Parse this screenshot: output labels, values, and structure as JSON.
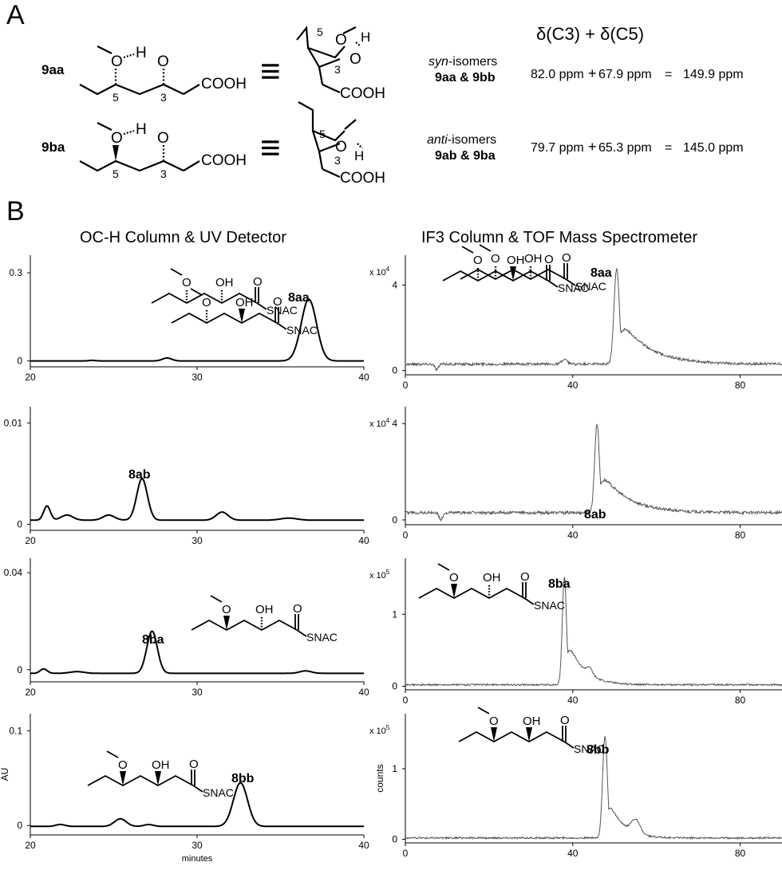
{
  "panel_a": {
    "letter": "A",
    "header": "δ(C3) + δ(C5)",
    "rows": [
      {
        "compound": "9aa",
        "atom_o": "O",
        "atom_h": "H",
        "num_5": "5",
        "num_3": "3",
        "acid": "COOH",
        "equiv": "≡",
        "isomer_type": "syn",
        "isomer_suffix": "-isomers",
        "isomer_pair": "9aa & 9bb",
        "c3_shift": "82.0 ppm",
        "c5_shift": "67.9 ppm",
        "plus": "+",
        "equals": "=",
        "sum": "149.9 ppm"
      },
      {
        "compound": "9ba",
        "atom_o": "O",
        "atom_h": "H",
        "num_5": "5",
        "num_3": "3",
        "acid": "COOH",
        "equiv": "≡",
        "isomer_type": "anti",
        "isomer_suffix": "-isomers",
        "isomer_pair": "9ab & 9ba",
        "c3_shift": "79.7 ppm",
        "c5_shift": "65.3 ppm",
        "plus": "+",
        "equals": "=",
        "sum": "145.0 ppm"
      }
    ]
  },
  "panel_b": {
    "letter": "B",
    "left_title": "OC-H Column & UV Detector",
    "right_title": "IF3 Column & TOF Mass Spectrometer",
    "struct_atoms": {
      "o": "O",
      "oh": "OH",
      "snac": "SNAC"
    }
  },
  "chart_data": [
    {
      "id": "uv-8aa",
      "type": "line",
      "detector": "UV",
      "compound": "8aa",
      "stereo": [
        "hash",
        "hash"
      ],
      "xlim": [
        20,
        40
      ],
      "xticks": [
        20,
        30,
        40
      ],
      "ylim": [
        -0.02,
        0.36
      ],
      "yticks": [
        0,
        0.3
      ],
      "ytick_labels": [
        "0",
        "0.3"
      ],
      "baseline": 0,
      "bumps": [
        [
          23.7,
          0.002,
          0.3
        ],
        [
          28.2,
          0.01,
          0.4
        ]
      ],
      "peaks": [
        {
          "x": 36.7,
          "y": 0.21,
          "w": 0.65
        }
      ],
      "noise": 0,
      "ylabel": "",
      "xlabel": "",
      "yexp": ""
    },
    {
      "id": "ms-8aa",
      "type": "line",
      "detector": "TOF MS",
      "compound": "8aa",
      "stereo": [
        "hash",
        "hash"
      ],
      "xlim": [
        0,
        90
      ],
      "xticks": [
        0,
        40,
        80
      ],
      "ylim": [
        -0.2,
        5.4
      ],
      "yticks": [
        0,
        4
      ],
      "ytick_labels": [
        "0",
        "4"
      ],
      "baseline": 0.3,
      "bumps": [
        [
          7.5,
          -0.25,
          0.6
        ],
        [
          38,
          0.2,
          1.0
        ]
      ],
      "peaks": [
        {
          "x": 50.5,
          "y": 4.5,
          "w": 0.9,
          "tail": 6.5
        }
      ],
      "noise": 0.06,
      "ylabel": "",
      "xlabel": "",
      "yexp": "x 10^4"
    },
    {
      "id": "uv-8ab",
      "type": "line",
      "detector": "UV",
      "compound": "8ab",
      "stereo": [
        "hash",
        "wedge"
      ],
      "xlim": [
        20,
        40
      ],
      "xticks": [
        20,
        30,
        40
      ],
      "ylim": [
        -0.0006,
        0.0116
      ],
      "yticks": [
        0,
        0.01
      ],
      "ytick_labels": [
        "0",
        "0.01"
      ],
      "baseline": 0.0004,
      "bumps": [
        [
          21.0,
          0.0014,
          0.28
        ],
        [
          22.2,
          0.0005,
          0.5
        ],
        [
          24.7,
          0.0005,
          0.5
        ],
        [
          31.5,
          0.0008,
          0.5
        ],
        [
          35.5,
          0.0002,
          0.7
        ]
      ],
      "peaks": [
        {
          "x": 26.7,
          "y": 0.0041,
          "w": 0.45
        }
      ],
      "noise": 0,
      "ylabel": "",
      "xlabel": "",
      "yexp": ""
    },
    {
      "id": "ms-8ab",
      "type": "line",
      "detector": "TOF MS",
      "compound": "8ab",
      "stereo": [
        "hash",
        "wedge"
      ],
      "xlim": [
        0,
        90
      ],
      "xticks": [
        0,
        40,
        80
      ],
      "ylim": [
        -0.2,
        4.7
      ],
      "yticks": [
        0,
        4
      ],
      "ytick_labels": [
        "0",
        "4"
      ],
      "baseline": 0.3,
      "bumps": [
        [
          8.5,
          -0.3,
          0.6
        ]
      ],
      "peaks": [
        {
          "x": 45.8,
          "y": 3.7,
          "w": 0.8,
          "tail": 6.0
        }
      ],
      "noise": 0.06,
      "ylabel": "",
      "xlabel": "",
      "yexp": "x 10^4"
    },
    {
      "id": "uv-8ba",
      "type": "line",
      "detector": "UV",
      "compound": "8ba",
      "stereo": [
        "wedge",
        "hash"
      ],
      "xlim": [
        20,
        40
      ],
      "xticks": [
        20,
        30,
        40
      ],
      "ylim": [
        -0.005,
        0.046
      ],
      "yticks": [
        0,
        0.04
      ],
      "ytick_labels": [
        "0",
        "0.04"
      ],
      "baseline": -0.0015,
      "bumps": [
        [
          20.8,
          0.0018,
          0.3
        ],
        [
          22.8,
          0.0007,
          0.6
        ],
        [
          36.5,
          0.001,
          0.5
        ]
      ],
      "peaks": [
        {
          "x": 27.3,
          "y": 0.0174,
          "w": 0.45
        }
      ],
      "noise": 0,
      "ylabel": "",
      "xlabel": "",
      "yexp": ""
    },
    {
      "id": "ms-8ba",
      "type": "line",
      "detector": "TOF MS",
      "compound": "8ba",
      "stereo": [
        "wedge",
        "hash"
      ],
      "xlim": [
        0,
        90
      ],
      "xticks": [
        0,
        40,
        80
      ],
      "ylim": [
        -0.05,
        1.78
      ],
      "yticks": [
        0,
        1
      ],
      "ytick_labels": [
        "0",
        "1"
      ],
      "baseline": 0.02,
      "bumps": [
        [
          44,
          0.1,
          1.0
        ]
      ],
      "peaks": [
        {
          "x": 38.0,
          "y": 1.5,
          "w": 0.7,
          "tail": 3.5
        }
      ],
      "noise": 0.012,
      "ylabel": "",
      "xlabel": "",
      "yexp": "x 10^5"
    },
    {
      "id": "uv-8bb",
      "type": "line",
      "detector": "UV",
      "compound": "8bb",
      "stereo": [
        "wedge",
        "wedge"
      ],
      "xlim": [
        20,
        40
      ],
      "xticks": [
        20,
        30,
        40
      ],
      "ylim": [
        -0.01,
        0.118
      ],
      "yticks": [
        0,
        0.1
      ],
      "ytick_labels": [
        "0",
        "0.1"
      ],
      "baseline": -0.001,
      "bumps": [
        [
          21.8,
          0.002,
          0.4
        ],
        [
          25.4,
          0.008,
          0.5
        ],
        [
          27.1,
          0.002,
          0.4
        ]
      ],
      "peaks": [
        {
          "x": 32.6,
          "y": 0.046,
          "w": 0.6
        }
      ],
      "noise": 0,
      "ylabel": "AU",
      "xlabel": "minutes",
      "yexp": ""
    },
    {
      "id": "ms-8bb",
      "type": "line",
      "detector": "TOF MS",
      "compound": "8bb",
      "stereo": [
        "wedge",
        "wedge"
      ],
      "xlim": [
        0,
        90
      ],
      "xticks": [
        0,
        40,
        80
      ],
      "ylim": [
        -0.05,
        1.78
      ],
      "yticks": [
        0,
        1
      ],
      "ytick_labels": [
        "0",
        "1"
      ],
      "baseline": 0.02,
      "bumps": [
        [
          55,
          0.2,
          1.5
        ]
      ],
      "peaks": [
        {
          "x": 47.7,
          "y": 1.45,
          "w": 0.8,
          "tail": 3.0
        }
      ],
      "noise": 0.012,
      "ylabel": "counts",
      "xlabel": "",
      "yexp": "x 10^5"
    }
  ]
}
